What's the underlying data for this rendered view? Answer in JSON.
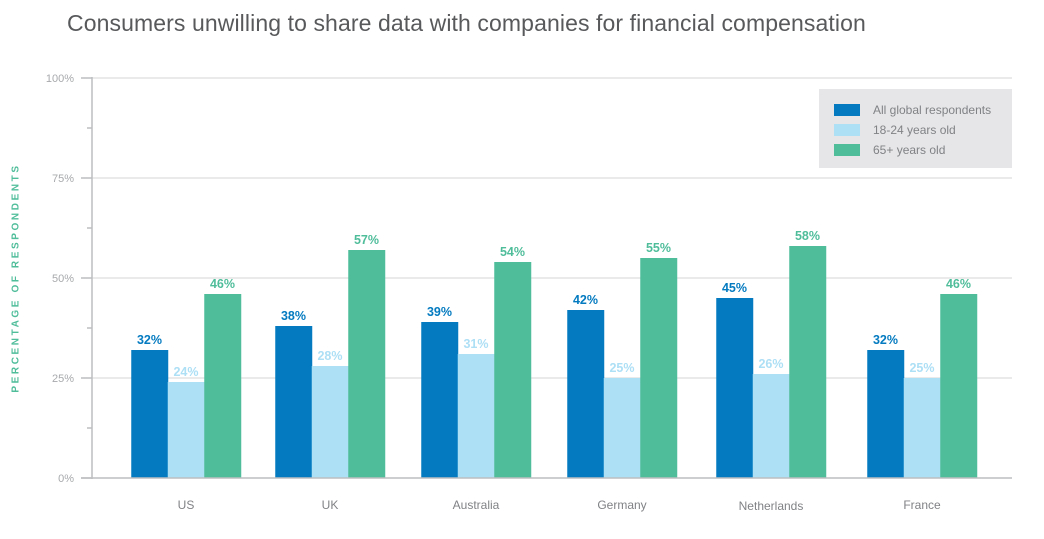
{
  "chart_data": {
    "type": "bar",
    "title": "Consumers unwilling to share data with companies for financial compensation",
    "xlabel": "",
    "ylabel": "PERCENTAGE OF RESPONDENTS",
    "ylim": [
      0,
      100
    ],
    "yticks": [
      0,
      25,
      50,
      75,
      100
    ],
    "ytick_labels": [
      "0%",
      "25%",
      "50%",
      "75%",
      "100%"
    ],
    "grid": true,
    "legend_position": "top-right",
    "categories": [
      "US",
      "UK",
      "Australia",
      "Germany",
      "Netherlands",
      "France"
    ],
    "series": [
      {
        "name": "All global respondents",
        "color": "#047bc0",
        "label_color": "#047bc0",
        "values": [
          32,
          38,
          39,
          42,
          45,
          32
        ],
        "labels": [
          "32%",
          "38%",
          "39%",
          "42%",
          "45%",
          "32%"
        ]
      },
      {
        "name": "18-24 years old",
        "color": "#addff5",
        "label_color": "#addff5",
        "values": [
          24,
          28,
          31,
          25,
          26,
          25
        ],
        "labels": [
          "24%",
          "28%",
          "31%",
          "25%",
          "26%",
          "25%"
        ]
      },
      {
        "name": "65+ years old",
        "color": "#4fbd9a",
        "label_color": "#4fbd9a",
        "values": [
          46,
          57,
          54,
          55,
          58,
          46
        ],
        "labels": [
          "46%",
          "57%",
          "54%",
          "55%",
          "58%",
          "46%"
        ]
      }
    ]
  }
}
